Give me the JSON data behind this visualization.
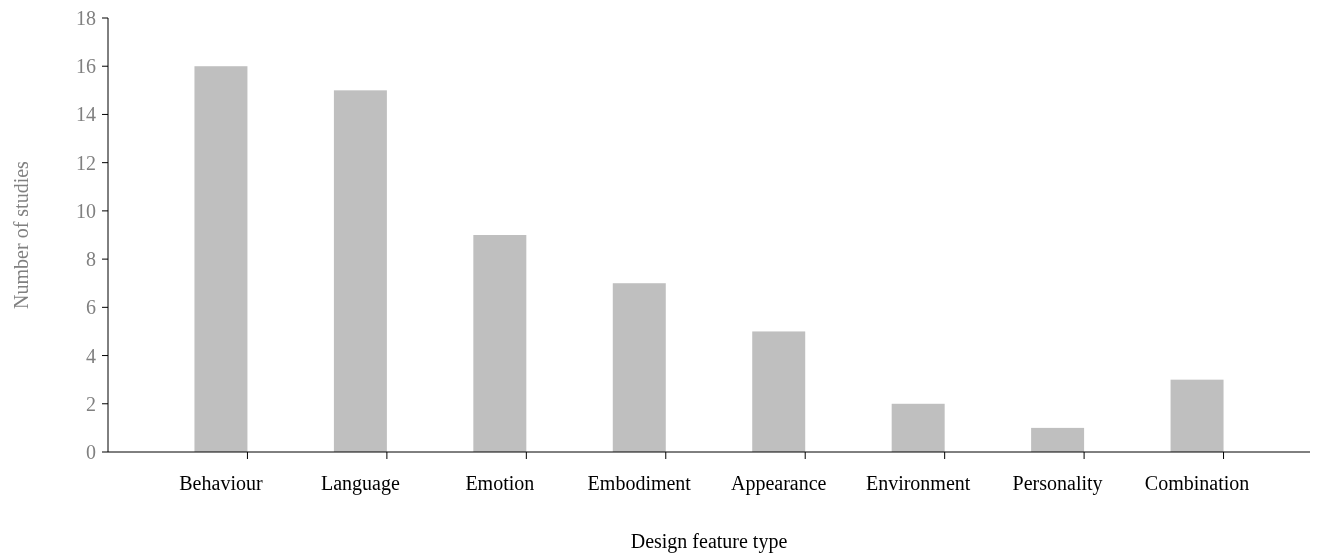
{
  "chart_data": {
    "type": "bar",
    "xlabel": "Design feature type",
    "ylabel": "Number of studies",
    "categories": [
      "Behaviour",
      "Language",
      "Emotion",
      "Embodiment",
      "Appearance",
      "Environment",
      "Personality",
      "Combination"
    ],
    "values": [
      16,
      15,
      9,
      7,
      5,
      2,
      1,
      3
    ],
    "color": "#bfbfbf",
    "ylim": [
      0,
      18
    ],
    "yticks": [
      0,
      2,
      4,
      6,
      8,
      10,
      12,
      14,
      16,
      18
    ],
    "grid": false
  }
}
